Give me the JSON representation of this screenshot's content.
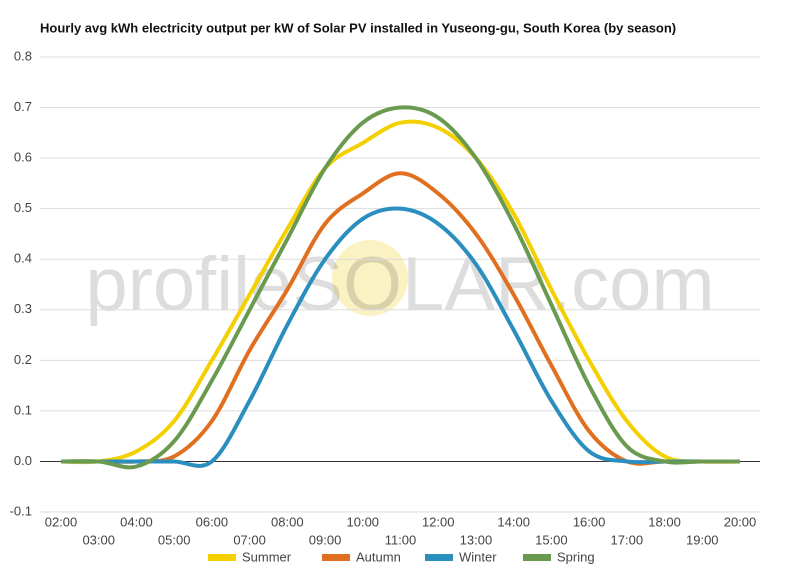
{
  "chart_data": {
    "type": "line",
    "title": "Hourly avg kWh electricity output per kW of Solar PV installed in Yuseong-gu, South Korea (by season)",
    "watermark": "profileSOLAR.com",
    "categories": [
      "02:00",
      "03:00",
      "04:00",
      "05:00",
      "06:00",
      "07:00",
      "08:00",
      "09:00",
      "10:00",
      "11:00",
      "12:00",
      "13:00",
      "14:00",
      "15:00",
      "16:00",
      "17:00",
      "18:00",
      "19:00",
      "20:00"
    ],
    "series": [
      {
        "name": "Summer",
        "color": "#f5d000",
        "values": [
          0,
          0,
          0.02,
          0.08,
          0.2,
          0.33,
          0.46,
          0.58,
          0.63,
          0.67,
          0.66,
          0.6,
          0.49,
          0.34,
          0.2,
          0.08,
          0.01,
          0,
          0
        ]
      },
      {
        "name": "Autumn",
        "color": "#e07020",
        "values": [
          0,
          0,
          0,
          0.01,
          0.08,
          0.22,
          0.34,
          0.47,
          0.53,
          0.57,
          0.53,
          0.45,
          0.33,
          0.19,
          0.06,
          0,
          0,
          0,
          0
        ]
      },
      {
        "name": "Winter",
        "color": "#2a8fbf",
        "values": [
          0,
          0,
          0,
          0,
          0,
          0.12,
          0.27,
          0.4,
          0.48,
          0.5,
          0.47,
          0.39,
          0.26,
          0.12,
          0.02,
          0,
          0,
          0,
          0
        ]
      },
      {
        "name": "Spring",
        "color": "#6a9a50",
        "values": [
          0,
          0,
          -0.01,
          0.04,
          0.16,
          0.3,
          0.44,
          0.58,
          0.67,
          0.7,
          0.68,
          0.6,
          0.47,
          0.31,
          0.15,
          0.03,
          0,
          0,
          0
        ]
      }
    ],
    "ylim": [
      -0.1,
      0.8
    ],
    "yticks": [
      -0.1,
      {
        "value": 0,
        "label": "0.0"
      },
      0.1,
      0.2,
      0.3,
      0.4,
      0.5,
      0.6,
      0.7,
      0.8
    ],
    "grid": true,
    "legend": "bottom"
  }
}
